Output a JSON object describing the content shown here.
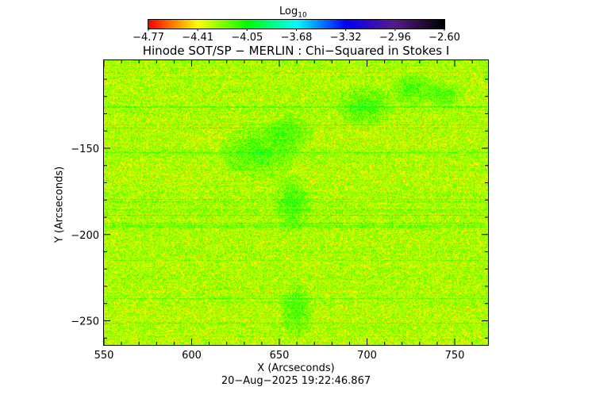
{
  "colorbar": {
    "title": "Log",
    "title_sub": "10",
    "ticks": [
      "−4.77",
      "−4.41",
      "−4.05",
      "−3.68",
      "−3.32",
      "−2.96",
      "−2.60"
    ],
    "colors": [
      "#ff0000",
      "#ffff00",
      "#00ff00",
      "#00ffff",
      "#0000ff",
      "#5a1a8c",
      "#000000"
    ]
  },
  "chart_data": {
    "type": "heatmap",
    "title": "Hinode SOT/SP − MERLIN : Chi−Squared in Stokes I",
    "xlabel": "X (Arcseconds)",
    "ylabel": "Y (Arcseconds)",
    "xlim": [
      550,
      769
    ],
    "ylim": [
      -264,
      -99
    ],
    "xticks": [
      550,
      600,
      650,
      700,
      750
    ],
    "yticks": [
      -150,
      -200,
      -250
    ],
    "value_range": [
      -4.77,
      -2.6
    ],
    "value_scale": "log10",
    "typical_value": -4.3,
    "grid": false
  },
  "timestamp": "20−Aug−2025 19:22:46.867"
}
